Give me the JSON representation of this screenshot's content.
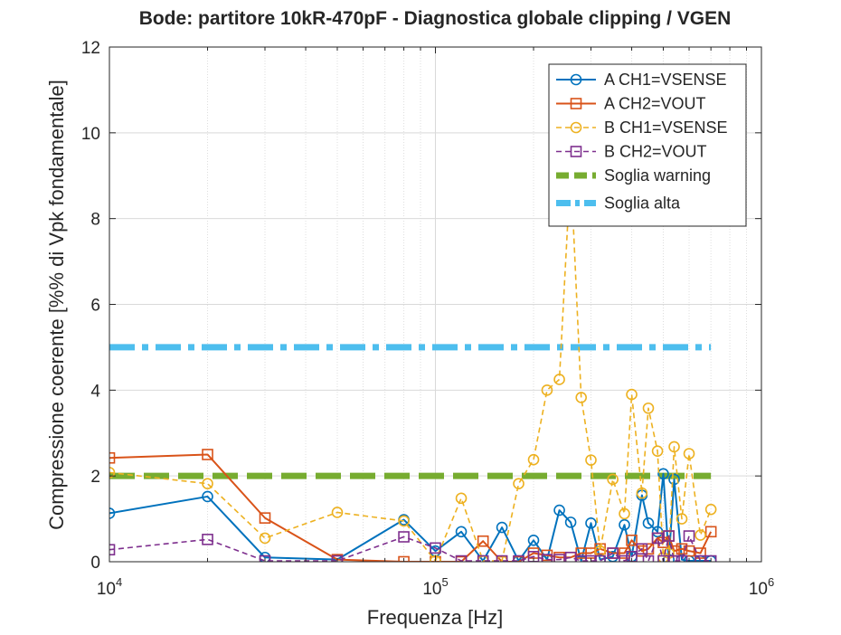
{
  "chart_data": {
    "type": "line",
    "title": "Bode: partitore 10kR-470pF - Diagnostica globale clipping / VGEN",
    "xlabel": "Frequenza [Hz]",
    "ylabel": "Compressione coerente [%% di Vpk fondamentale]",
    "xscale": "log",
    "xlim": [
      10000,
      1000000
    ],
    "ylim": [
      0,
      12
    ],
    "grid": true,
    "legend_position": "top-right",
    "xticks": [
      10000,
      100000,
      1000000
    ],
    "xtick_labels": [
      {
        "base": "10",
        "exp": "4"
      },
      {
        "base": "10",
        "exp": "5"
      },
      {
        "base": "10",
        "exp": "6"
      }
    ],
    "yticks": [
      0,
      2,
      4,
      6,
      8,
      10,
      12
    ],
    "ytick_labels": [
      "0",
      "2",
      "4",
      "6",
      "8",
      "10",
      "12"
    ],
    "series": [
      {
        "name": "A CH1=VSENSE",
        "color": "#0072BD",
        "style": "solid",
        "marker": "circle",
        "points": [
          [
            10000,
            1.13
          ],
          [
            20000,
            1.52
          ],
          [
            30000,
            0.1
          ],
          [
            50000,
            0.05
          ],
          [
            80000,
            0.98
          ],
          [
            100000,
            0.25
          ],
          [
            120000,
            0.7
          ],
          [
            140000,
            0.02
          ],
          [
            160000,
            0.8
          ],
          [
            180000,
            0.02
          ],
          [
            200000,
            0.5
          ],
          [
            220000,
            0.05
          ],
          [
            240000,
            1.2
          ],
          [
            260000,
            0.92
          ],
          [
            280000,
            0.02
          ],
          [
            300000,
            0.9
          ],
          [
            320000,
            0.05
          ],
          [
            350000,
            0.12
          ],
          [
            380000,
            0.86
          ],
          [
            400000,
            0.12
          ],
          [
            430000,
            1.55
          ],
          [
            450000,
            0.9
          ],
          [
            480000,
            0.7
          ],
          [
            500000,
            2.05
          ],
          [
            520000,
            0.05
          ],
          [
            540000,
            1.92
          ],
          [
            570000,
            0.05
          ],
          [
            600000,
            0.02
          ],
          [
            650000,
            0.02
          ],
          [
            700000,
            0.02
          ]
        ]
      },
      {
        "name": "A CH2=VOUT",
        "color": "#D95319",
        "style": "solid",
        "marker": "square",
        "points": [
          [
            10000,
            2.42
          ],
          [
            20000,
            2.5
          ],
          [
            30000,
            1.02
          ],
          [
            50000,
            0.05
          ],
          [
            80000,
            0.0
          ],
          [
            100000,
            0.0
          ],
          [
            120000,
            0.0
          ],
          [
            140000,
            0.48
          ],
          [
            160000,
            0.0
          ],
          [
            180000,
            0.0
          ],
          [
            200000,
            0.2
          ],
          [
            220000,
            0.15
          ],
          [
            240000,
            0.1
          ],
          [
            260000,
            0.1
          ],
          [
            280000,
            0.2
          ],
          [
            300000,
            0.2
          ],
          [
            320000,
            0.3
          ],
          [
            350000,
            0.2
          ],
          [
            380000,
            0.2
          ],
          [
            400000,
            0.5
          ],
          [
            430000,
            0.25
          ],
          [
            450000,
            0.3
          ],
          [
            480000,
            0.55
          ],
          [
            500000,
            0.45
          ],
          [
            520000,
            0.6
          ],
          [
            540000,
            0.25
          ],
          [
            570000,
            0.3
          ],
          [
            600000,
            0.25
          ],
          [
            650000,
            0.2
          ],
          [
            700000,
            0.7
          ]
        ]
      },
      {
        "name": "B CH1=VSENSE",
        "color": "#EDB120",
        "style": "dashed",
        "marker": "circle",
        "points": [
          [
            10000,
            2.08
          ],
          [
            20000,
            1.82
          ],
          [
            30000,
            0.55
          ],
          [
            50000,
            1.15
          ],
          [
            80000,
            0.95
          ],
          [
            100000,
            0.02
          ],
          [
            120000,
            1.48
          ],
          [
            140000,
            0.02
          ],
          [
            160000,
            0.02
          ],
          [
            180000,
            1.82
          ],
          [
            200000,
            2.38
          ],
          [
            220000,
            4.0
          ],
          [
            240000,
            4.25
          ],
          [
            260000,
            9.2
          ],
          [
            280000,
            3.83
          ],
          [
            300000,
            2.37
          ],
          [
            320000,
            0.25
          ],
          [
            350000,
            1.92
          ],
          [
            380000,
            1.12
          ],
          [
            400000,
            3.9
          ],
          [
            430000,
            1.6
          ],
          [
            450000,
            3.58
          ],
          [
            480000,
            2.58
          ],
          [
            500000,
            0.1
          ],
          [
            520000,
            0.2
          ],
          [
            540000,
            2.68
          ],
          [
            570000,
            1.0
          ],
          [
            600000,
            2.52
          ],
          [
            650000,
            0.62
          ],
          [
            700000,
            1.22
          ]
        ]
      },
      {
        "name": "B CH2=VOUT",
        "color": "#7E2F8E",
        "style": "dashed",
        "marker": "square",
        "points": [
          [
            10000,
            0.28
          ],
          [
            20000,
            0.52
          ],
          [
            30000,
            0.02
          ],
          [
            50000,
            0.02
          ],
          [
            80000,
            0.58
          ],
          [
            100000,
            0.32
          ],
          [
            120000,
            0.02
          ],
          [
            140000,
            0.02
          ],
          [
            160000,
            0.02
          ],
          [
            180000,
            0.02
          ],
          [
            200000,
            0.12
          ],
          [
            220000,
            0.05
          ],
          [
            240000,
            0.05
          ],
          [
            260000,
            0.1
          ],
          [
            280000,
            0.02
          ],
          [
            300000,
            0.02
          ],
          [
            320000,
            0.02
          ],
          [
            350000,
            0.2
          ],
          [
            380000,
            0.02
          ],
          [
            400000,
            0.12
          ],
          [
            430000,
            0.3
          ],
          [
            450000,
            0.02
          ],
          [
            480000,
            0.55
          ],
          [
            500000,
            0.02
          ],
          [
            520000,
            0.6
          ],
          [
            540000,
            0.02
          ],
          [
            570000,
            0.02
          ],
          [
            600000,
            0.6
          ],
          [
            650000,
            0.02
          ],
          [
            700000,
            0.02
          ]
        ]
      },
      {
        "name": "Soglia warning",
        "color": "#77AC30",
        "style": "thick-dashed",
        "marker": "none",
        "points": [
          [
            10000,
            2.0
          ],
          [
            700000,
            2.0
          ]
        ]
      },
      {
        "name": "Soglia alta",
        "color": "#4DBEEE",
        "style": "thick-dashdot",
        "marker": "none",
        "points": [
          [
            10000,
            5.0
          ],
          [
            700000,
            5.0
          ]
        ]
      }
    ]
  }
}
